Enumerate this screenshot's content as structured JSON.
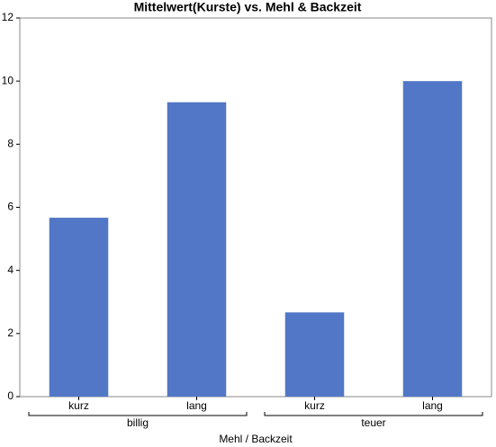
{
  "chart_data": {
    "type": "bar",
    "title": "Mittelwert(Kurste) vs. Mehl & Backzeit",
    "xlabel": "Mehl / Backzeit",
    "groups": [
      {
        "name": "billig",
        "categories": [
          "kurz",
          "lang"
        ],
        "values": [
          5.67,
          9.33
        ]
      },
      {
        "name": "teuer",
        "categories": [
          "kurz",
          "lang"
        ],
        "values": [
          2.67,
          10
        ]
      }
    ],
    "color": "#5277c6",
    "ylim": [
      0,
      12
    ],
    "yticks": [
      0,
      2,
      4,
      6,
      8,
      10,
      12
    ]
  }
}
